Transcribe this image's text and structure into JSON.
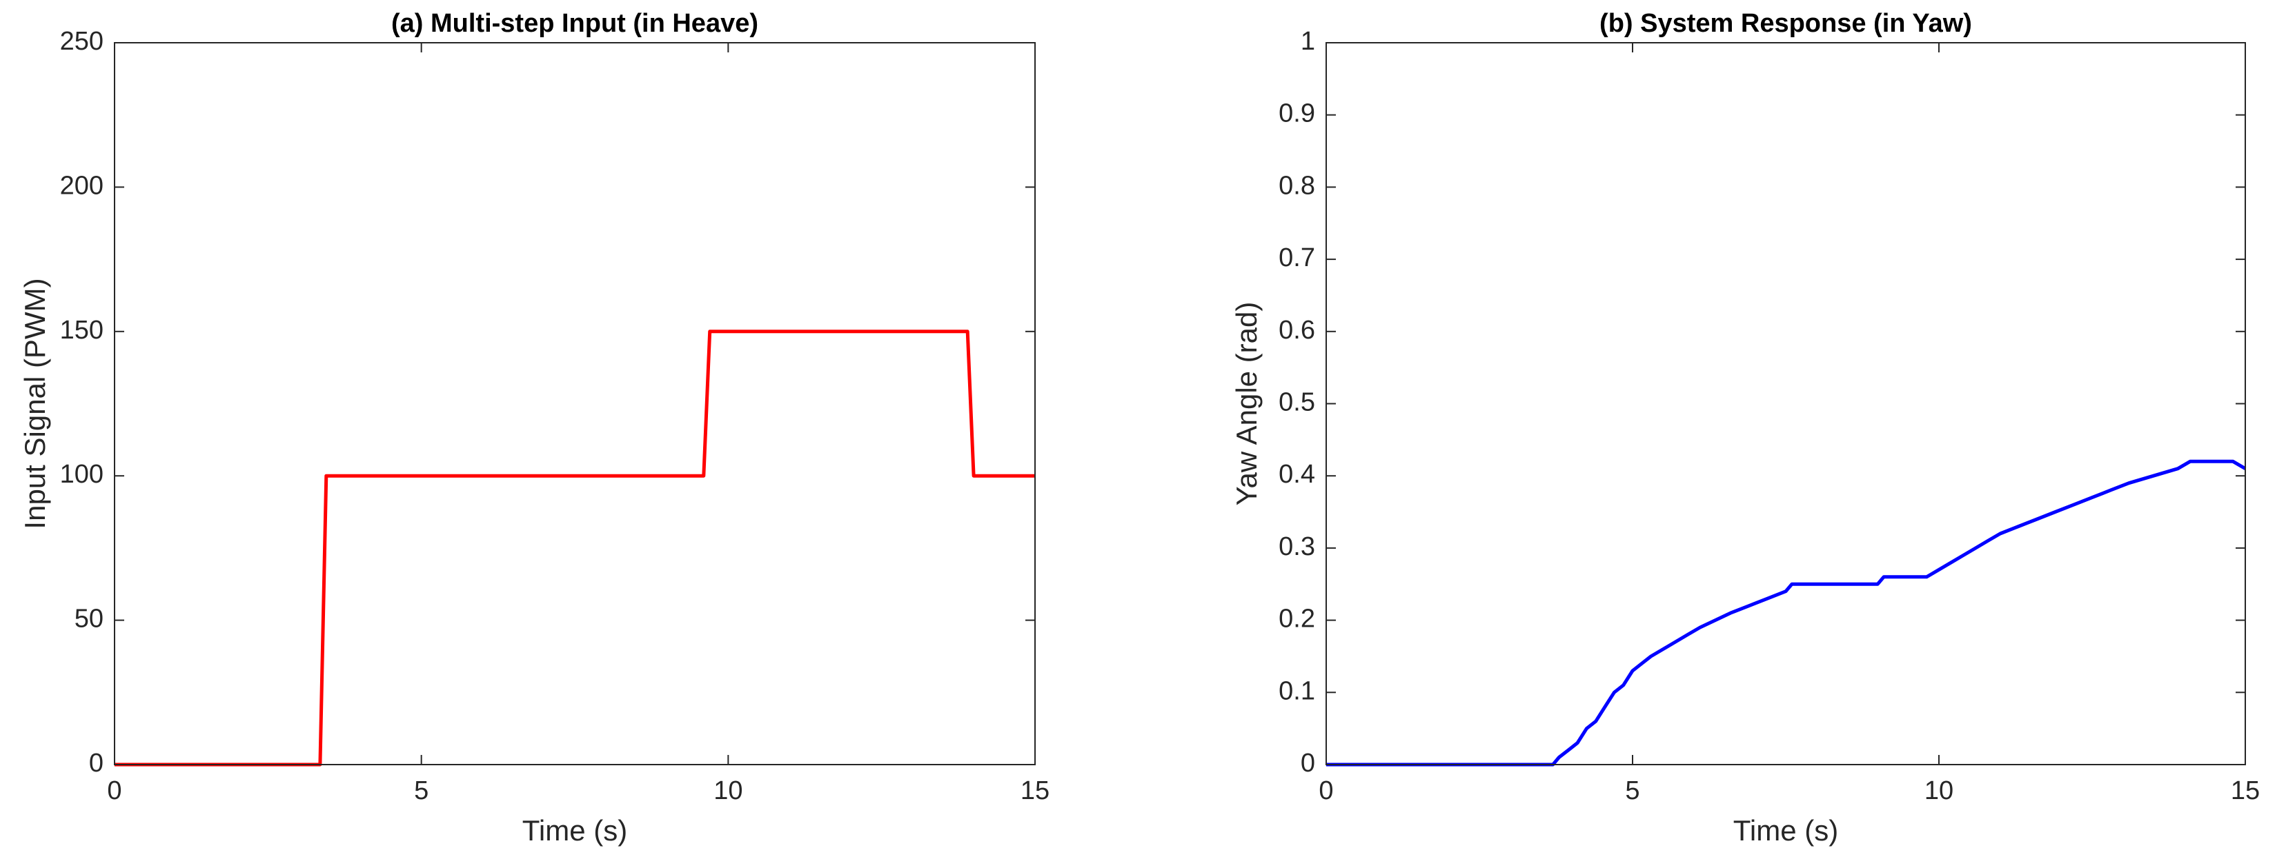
{
  "chart_data": [
    {
      "type": "line",
      "title": "(a) Multi-step Input (in Heave)",
      "x_label": "Time (s)",
      "y_label": "Input Signal (PWM)",
      "xlim": [
        0,
        15
      ],
      "xticks": [
        0,
        5,
        10,
        15
      ],
      "ylim": [
        0,
        250
      ],
      "yticks": [
        0,
        50,
        100,
        150,
        200,
        250
      ],
      "series": [
        {
          "color": "#ff0000",
          "x": [
            0,
            3.35,
            3.45,
            9.6,
            9.7,
            13.9,
            14.0,
            15
          ],
          "values": [
            0,
            0,
            100,
            100,
            150,
            150,
            100,
            100
          ]
        }
      ]
    },
    {
      "type": "line",
      "title": "(b) System Response (in Yaw)",
      "x_label": "Time (s)",
      "y_label": "Yaw Angle (rad)",
      "xlim": [
        0,
        15
      ],
      "xticks": [
        0,
        5,
        10,
        15
      ],
      "ylim": [
        0,
        1
      ],
      "yticks": [
        0,
        0.1,
        0.2,
        0.3,
        0.4,
        0.5,
        0.6,
        0.7,
        0.8,
        0.9,
        1
      ],
      "series": [
        {
          "color": "#0000ff",
          "x": [
            0,
            3.7,
            3.8,
            3.95,
            4.1,
            4.25,
            4.4,
            4.55,
            4.7,
            4.85,
            5.0,
            5.15,
            5.3,
            5.5,
            5.7,
            5.9,
            6.1,
            6.35,
            6.6,
            6.9,
            7.2,
            7.5,
            7.6,
            9.0,
            9.1,
            9.8,
            10.0,
            10.2,
            10.4,
            10.6,
            10.8,
            11.0,
            11.3,
            11.6,
            11.9,
            12.2,
            12.5,
            12.8,
            13.1,
            13.5,
            13.9,
            14.1,
            14.8,
            15
          ],
          "values": [
            0,
            0,
            0.01,
            0.02,
            0.03,
            0.05,
            0.06,
            0.08,
            0.1,
            0.11,
            0.13,
            0.14,
            0.15,
            0.16,
            0.17,
            0.18,
            0.19,
            0.2,
            0.21,
            0.22,
            0.23,
            0.24,
            0.25,
            0.25,
            0.26,
            0.26,
            0.27,
            0.28,
            0.29,
            0.3,
            0.31,
            0.32,
            0.33,
            0.34,
            0.35,
            0.36,
            0.37,
            0.38,
            0.39,
            0.4,
            0.41,
            0.42,
            0.42,
            0.41
          ]
        }
      ]
    }
  ]
}
